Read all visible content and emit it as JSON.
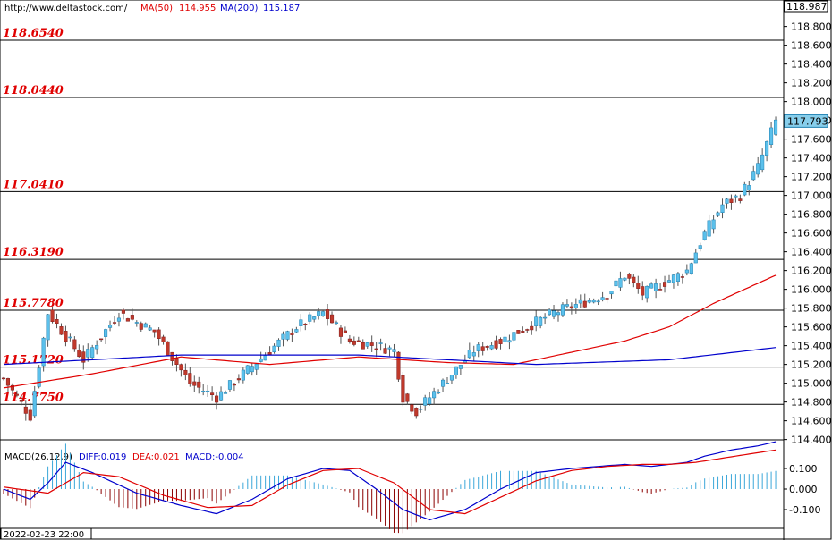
{
  "header": {
    "site": "http://www.deltastock.com/",
    "ma50_label": "MA(50)",
    "ma50_value": "114.955",
    "ma200_label": "MA(200)",
    "ma200_value": "115.187",
    "ma50_color": "#e00000",
    "ma200_color": "#0000cc"
  },
  "price_axis": {
    "top_value": "118.987",
    "current_value": "117.793",
    "current_color": "#87ceeb",
    "ticks": [
      "118.800",
      "118.600",
      "118.400",
      "118.200",
      "118.000",
      "117.800",
      "117.600",
      "117.400",
      "117.200",
      "117.000",
      "116.800",
      "116.600",
      "116.400",
      "116.200",
      "116.000",
      "115.800",
      "115.600",
      "115.400",
      "115.200",
      "115.000",
      "114.800",
      "114.600",
      "114.400"
    ]
  },
  "levels": [
    {
      "label": "118.6540",
      "value": 118.654
    },
    {
      "label": "118.0440",
      "value": 118.044
    },
    {
      "label": "117.0410",
      "value": 117.041
    },
    {
      "label": "116.3190",
      "value": 116.319
    },
    {
      "label": "115.7780",
      "value": 115.778
    },
    {
      "label": "115.1720",
      "value": 115.172
    },
    {
      "label": "114.7750",
      "value": 114.775
    }
  ],
  "macd": {
    "title": "MACD(26,12,9)",
    "diff_label": "DIFF:0.019",
    "dea_label": "DEA:0.021",
    "macd_label": "MACD:-0.004",
    "diff_color": "#0000cc",
    "dea_color": "#e00000",
    "ticks": [
      "0.100",
      "0.000",
      "-0.100"
    ]
  },
  "footer": {
    "timestamp": "2022-02-23 22:00"
  },
  "chart_data": {
    "type": "candlestick",
    "y_range": [
      114.25,
      118.99
    ],
    "candles_keypoints": [
      {
        "i": 0,
        "close": 115.05
      },
      {
        "i": 6,
        "close": 114.65
      },
      {
        "i": 10,
        "close": 115.75
      },
      {
        "i": 18,
        "close": 115.25
      },
      {
        "i": 26,
        "close": 115.75
      },
      {
        "i": 34,
        "close": 115.55
      },
      {
        "i": 42,
        "close": 115.0
      },
      {
        "i": 48,
        "close": 114.85
      },
      {
        "i": 54,
        "close": 115.1
      },
      {
        "i": 60,
        "close": 115.35
      },
      {
        "i": 66,
        "close": 115.6
      },
      {
        "i": 72,
        "close": 115.75
      },
      {
        "i": 78,
        "close": 115.45
      },
      {
        "i": 84,
        "close": 115.4
      },
      {
        "i": 88,
        "close": 115.35
      },
      {
        "i": 90,
        "close": 114.85
      },
      {
        "i": 93,
        "close": 114.7
      },
      {
        "i": 100,
        "close": 115.05
      },
      {
        "i": 106,
        "close": 115.35
      },
      {
        "i": 112,
        "close": 115.45
      },
      {
        "i": 118,
        "close": 115.6
      },
      {
        "i": 124,
        "close": 115.75
      },
      {
        "i": 130,
        "close": 115.85
      },
      {
        "i": 136,
        "close": 115.95
      },
      {
        "i": 140,
        "close": 116.15
      },
      {
        "i": 144,
        "close": 115.95
      },
      {
        "i": 150,
        "close": 116.1
      },
      {
        "i": 154,
        "close": 116.2
      },
      {
        "i": 158,
        "close": 116.6
      },
      {
        "i": 162,
        "close": 116.9
      },
      {
        "i": 166,
        "close": 117.0
      },
      {
        "i": 170,
        "close": 117.3
      },
      {
        "i": 172,
        "close": 117.55
      },
      {
        "i": 174,
        "close": 117.79
      }
    ],
    "ma50_keypoints": [
      [
        0,
        114.95
      ],
      [
        20,
        115.1
      ],
      [
        40,
        115.28
      ],
      [
        60,
        115.2
      ],
      [
        80,
        115.28
      ],
      [
        100,
        115.22
      ],
      [
        115,
        115.2
      ],
      [
        130,
        115.35
      ],
      [
        140,
        115.45
      ],
      [
        150,
        115.6
      ],
      [
        160,
        115.85
      ],
      [
        174,
        116.15
      ]
    ],
    "ma200_keypoints": [
      [
        0,
        115.2
      ],
      [
        40,
        115.3
      ],
      [
        80,
        115.3
      ],
      [
        100,
        115.25
      ],
      [
        120,
        115.2
      ],
      [
        150,
        115.25
      ],
      [
        174,
        115.38
      ]
    ],
    "diff_keypoints": [
      [
        0,
        0.0
      ],
      [
        6,
        -0.05
      ],
      [
        10,
        0.03
      ],
      [
        14,
        0.13
      ],
      [
        20,
        0.08
      ],
      [
        30,
        -0.02
      ],
      [
        40,
        -0.08
      ],
      [
        48,
        -0.12
      ],
      [
        56,
        -0.05
      ],
      [
        64,
        0.05
      ],
      [
        72,
        0.1
      ],
      [
        78,
        0.09
      ],
      [
        84,
        0.0
      ],
      [
        90,
        -0.1
      ],
      [
        96,
        -0.15
      ],
      [
        104,
        -0.1
      ],
      [
        112,
        0.0
      ],
      [
        120,
        0.08
      ],
      [
        128,
        0.1
      ],
      [
        134,
        0.11
      ],
      [
        140,
        0.12
      ],
      [
        146,
        0.11
      ],
      [
        150,
        0.12
      ],
      [
        154,
        0.13
      ],
      [
        158,
        0.16
      ],
      [
        164,
        0.19
      ],
      [
        170,
        0.21
      ],
      [
        174,
        0.23
      ]
    ],
    "dea_keypoints": [
      [
        0,
        0.01
      ],
      [
        10,
        -0.02
      ],
      [
        18,
        0.08
      ],
      [
        26,
        0.06
      ],
      [
        36,
        -0.03
      ],
      [
        46,
        -0.09
      ],
      [
        56,
        -0.08
      ],
      [
        64,
        0.02
      ],
      [
        72,
        0.09
      ],
      [
        80,
        0.1
      ],
      [
        88,
        0.03
      ],
      [
        96,
        -0.1
      ],
      [
        104,
        -0.12
      ],
      [
        112,
        -0.04
      ],
      [
        120,
        0.04
      ],
      [
        128,
        0.09
      ],
      [
        136,
        0.11
      ],
      [
        144,
        0.12
      ],
      [
        150,
        0.12
      ],
      [
        156,
        0.13
      ],
      [
        162,
        0.15
      ],
      [
        168,
        0.17
      ],
      [
        174,
        0.19
      ]
    ]
  }
}
